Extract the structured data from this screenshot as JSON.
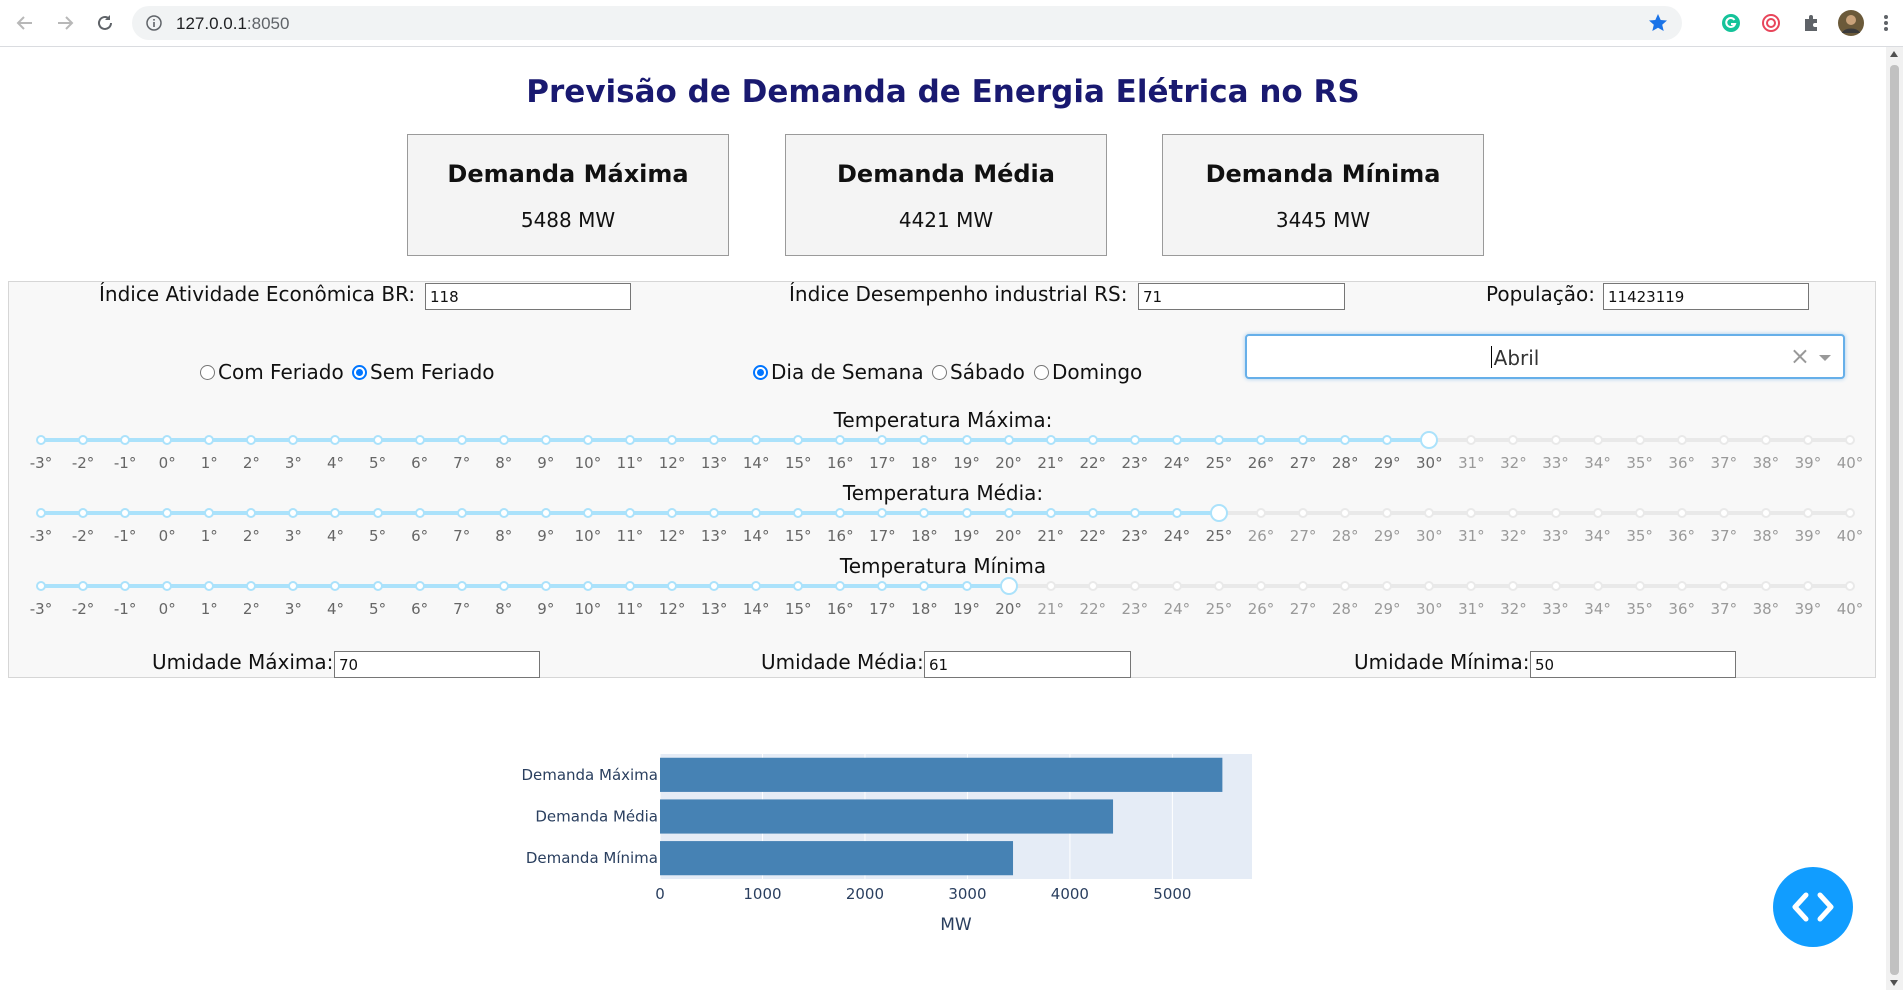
{
  "browser": {
    "url_host": "127.0.0.1",
    "url_port": ":8050"
  },
  "title": "Previsão de Demanda de Energia Elétrica no RS",
  "cards": [
    {
      "title": "Demanda Máxima",
      "value": "5488 MW"
    },
    {
      "title": "Demanda Média",
      "value": "4421 MW"
    },
    {
      "title": "Demanda Mínima",
      "value": "3445 MW"
    }
  ],
  "inputs": {
    "atividade": {
      "label": "Índice Atividade Econômica BR:",
      "value": "118"
    },
    "industrial": {
      "label": "Índice Desempenho industrial RS:",
      "value": "71"
    },
    "populacao": {
      "label": "População:",
      "value": "11423119"
    }
  },
  "feriado": {
    "options": [
      "Com Feriado",
      "Sem Feriado"
    ],
    "selected": "Sem Feriado"
  },
  "dia": {
    "options": [
      "Dia de Semana",
      "Sábado",
      "Domingo"
    ],
    "selected": "Dia de Semana"
  },
  "mes_dropdown": {
    "value": "Abril",
    "clear": "×"
  },
  "sliders": {
    "min": -3,
    "max": 40,
    "temp_max": {
      "label": "Temperatura Máxima:",
      "value": 30
    },
    "temp_med": {
      "label": "Temperatura Média:",
      "value": 25
    },
    "temp_min": {
      "label": "Temperatura Mínima",
      "value": 20
    }
  },
  "umidade": {
    "max": {
      "label": "Umidade Máxima:",
      "value": "70"
    },
    "med": {
      "label": "Umidade Média:",
      "value": "61"
    },
    "min": {
      "label": "Umidade Mínima:",
      "value": "50"
    }
  },
  "chart_data": {
    "type": "bar",
    "orientation": "horizontal",
    "categories": [
      "Demanda Máxima",
      "Demanda Média",
      "Demanda Mínima"
    ],
    "values": [
      5488,
      4421,
      3445
    ],
    "xlabel": "MW",
    "ylabel": "",
    "xticks": [
      0,
      1000,
      2000,
      3000,
      4000,
      5000
    ],
    "xlim": [
      0,
      5777
    ],
    "bar_color": "#4682b4",
    "plot_bg": "#e5ecf6",
    "grid": true
  },
  "colors": {
    "title": "#191970",
    "slider_active": "#abe2fb",
    "radio": "#0075ff",
    "fab": "#119dff"
  }
}
